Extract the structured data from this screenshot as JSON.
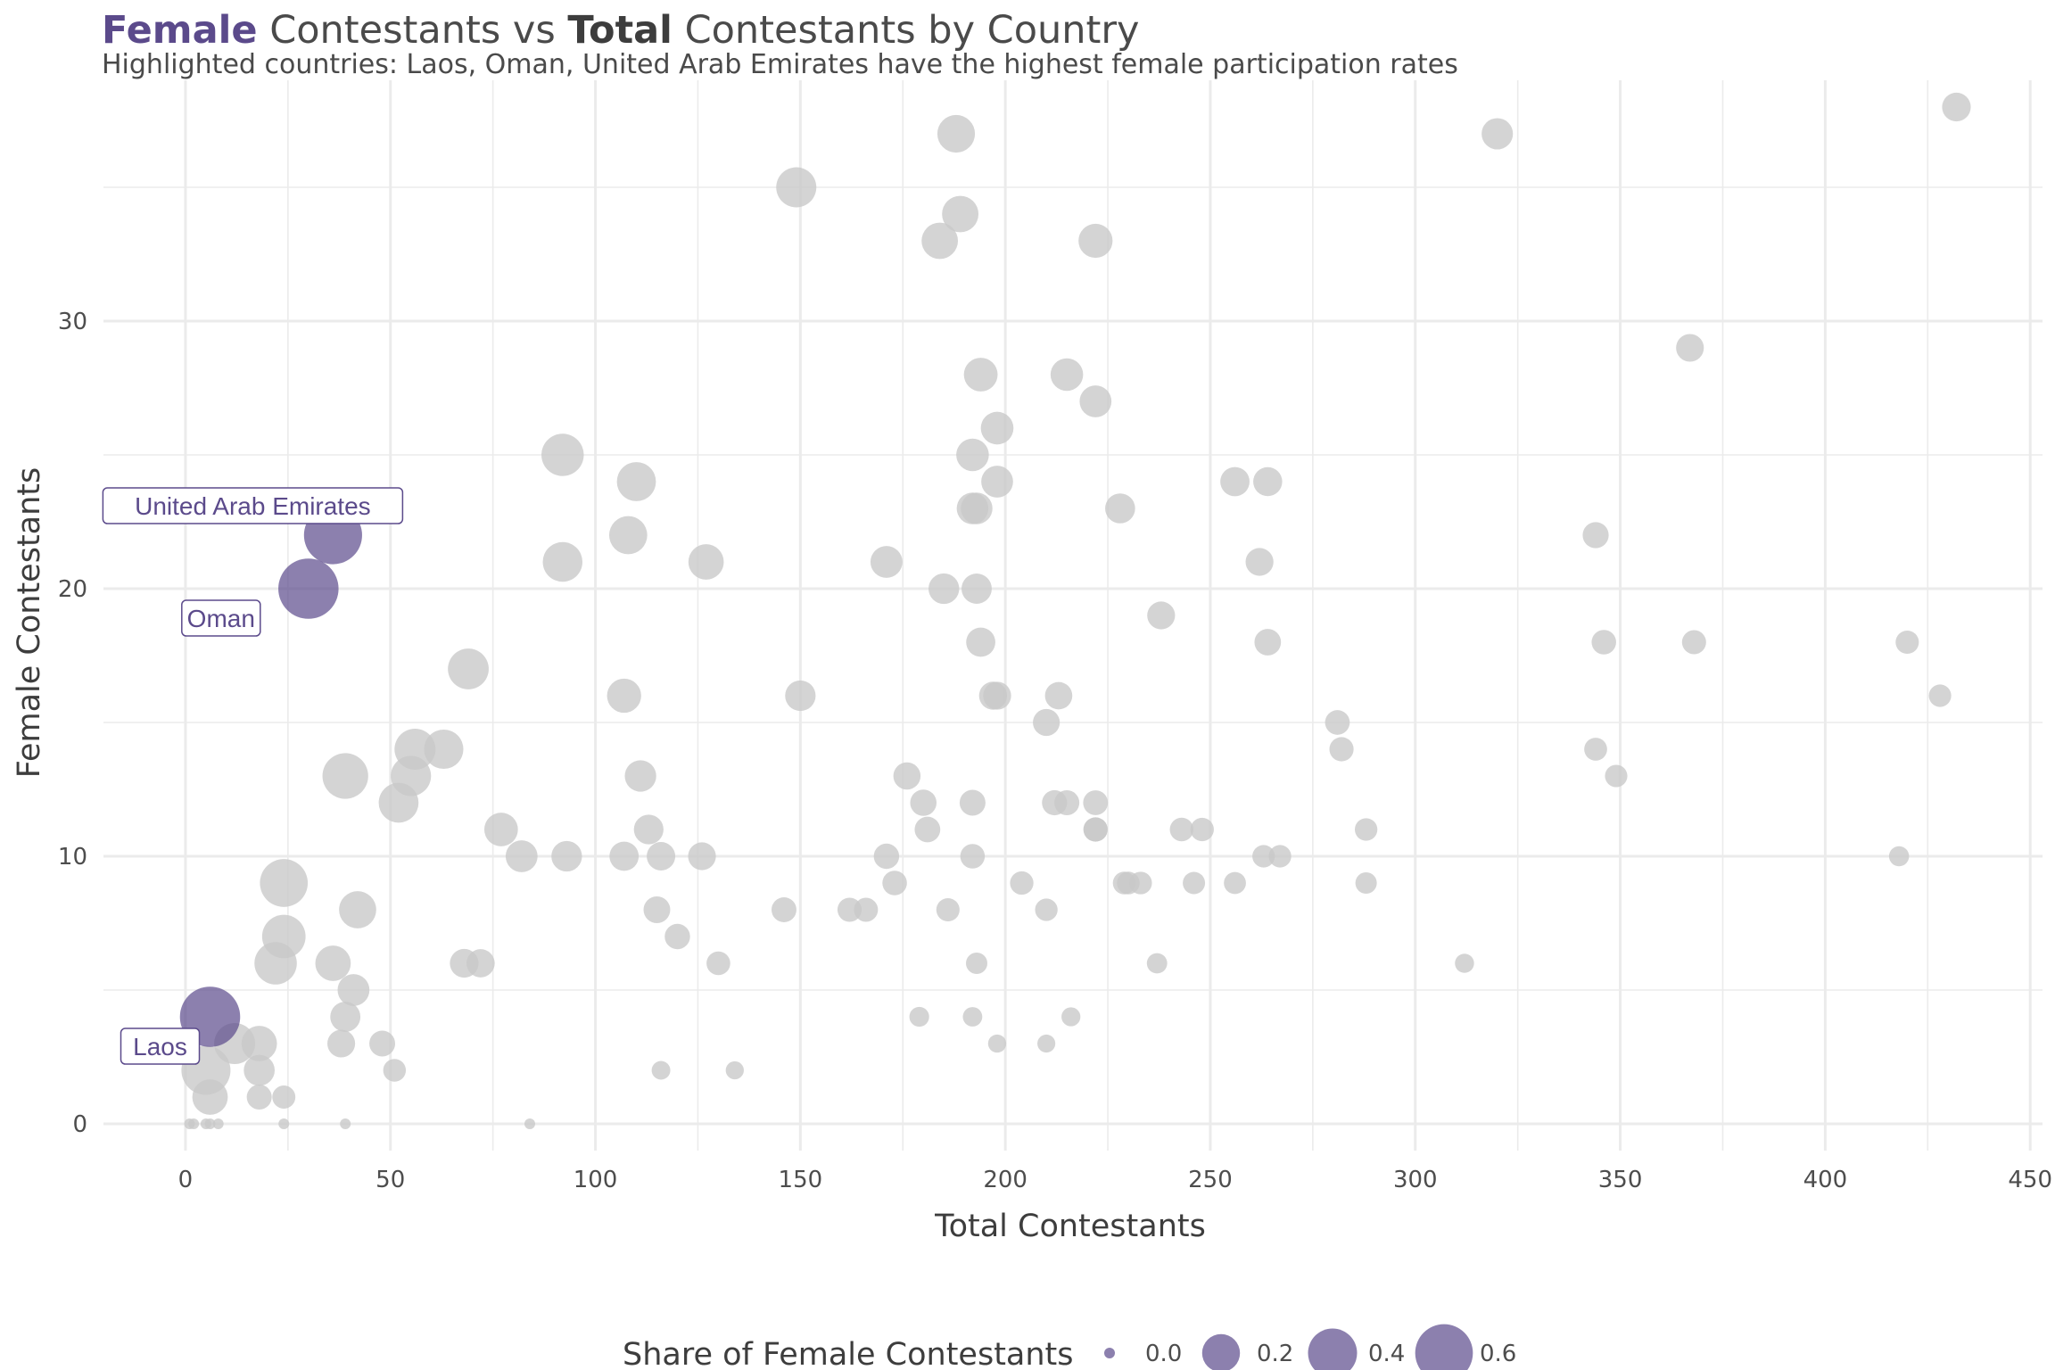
{
  "title_parts": {
    "a": "Female",
    "b": " Contestants vs ",
    "c": "Total",
    "d": " Contestants by Country"
  },
  "subtitle": "Highlighted countries: Laos, Oman, United Arab Emirates have the highest female participation rates",
  "colors": {
    "highlight": "#5b4a8b",
    "base": "#c8c8c8",
    "grid": "#ebebeb"
  },
  "chart_data": {
    "type": "scatter",
    "title": "Female Contestants vs Total Contestants by Country",
    "subtitle": "Highlighted countries: Laos, Oman, United Arab Emirates have the highest female participation rates",
    "xlabel": "Total Contestants",
    "ylabel": "Female Contestants",
    "xlim": [
      -20,
      453
    ],
    "ylim": [
      -1,
      39
    ],
    "xticks": [
      0,
      50,
      100,
      150,
      200,
      250,
      300,
      350,
      400,
      450
    ],
    "yticks": [
      0,
      10,
      20,
      30
    ],
    "grid": true,
    "size_encoding": "female / total",
    "legend": {
      "title": "Share of Female Contestants",
      "position": "bottom",
      "entries": [
        0.0,
        0.2,
        0.4,
        0.6
      ]
    },
    "highlighted": [
      {
        "name": "United Arab Emirates",
        "x": 36,
        "y": 22
      },
      {
        "name": "Oman",
        "x": 30,
        "y": 20
      },
      {
        "name": "Laos",
        "x": 6,
        "y": 4
      }
    ],
    "points": [
      [
        432,
        38
      ],
      [
        320,
        37
      ],
      [
        188,
        37
      ],
      [
        149,
        35
      ],
      [
        189,
        34
      ],
      [
        184,
        33
      ],
      [
        222,
        33
      ],
      [
        367,
        29
      ],
      [
        194,
        28
      ],
      [
        215,
        28
      ],
      [
        222,
        27
      ],
      [
        198,
        26
      ],
      [
        92,
        25
      ],
      [
        192,
        25
      ],
      [
        110,
        24
      ],
      [
        198,
        24
      ],
      [
        256,
        24
      ],
      [
        264,
        24
      ],
      [
        192,
        23
      ],
      [
        193,
        23
      ],
      [
        228,
        23
      ],
      [
        108,
        22
      ],
      [
        344,
        22
      ],
      [
        92,
        21
      ],
      [
        127,
        21
      ],
      [
        171,
        21
      ],
      [
        262,
        21
      ],
      [
        185,
        20
      ],
      [
        193,
        20
      ],
      [
        238,
        19
      ],
      [
        194,
        18
      ],
      [
        264,
        18
      ],
      [
        346,
        18
      ],
      [
        368,
        18
      ],
      [
        420,
        18
      ],
      [
        69,
        17
      ],
      [
        107,
        16
      ],
      [
        150,
        16
      ],
      [
        197,
        16
      ],
      [
        198,
        16
      ],
      [
        213,
        16
      ],
      [
        428,
        16
      ],
      [
        210,
        15
      ],
      [
        281,
        15
      ],
      [
        56,
        14
      ],
      [
        63,
        14
      ],
      [
        282,
        14
      ],
      [
        344,
        14
      ],
      [
        39,
        13
      ],
      [
        55,
        13
      ],
      [
        111,
        13
      ],
      [
        176,
        13
      ],
      [
        349,
        13
      ],
      [
        52,
        12
      ],
      [
        180,
        12
      ],
      [
        192,
        12
      ],
      [
        212,
        12
      ],
      [
        215,
        12
      ],
      [
        222,
        12
      ],
      [
        77,
        11
      ],
      [
        113,
        11
      ],
      [
        181,
        11
      ],
      [
        222,
        11
      ],
      [
        222,
        11
      ],
      [
        243,
        11
      ],
      [
        248,
        11
      ],
      [
        288,
        11
      ],
      [
        82,
        10
      ],
      [
        93,
        10
      ],
      [
        107,
        10
      ],
      [
        116,
        10
      ],
      [
        126,
        10
      ],
      [
        171,
        10
      ],
      [
        192,
        10
      ],
      [
        263,
        10
      ],
      [
        267,
        10
      ],
      [
        418,
        10
      ],
      [
        24,
        9
      ],
      [
        173,
        9
      ],
      [
        204,
        9
      ],
      [
        229,
        9
      ],
      [
        230,
        9
      ],
      [
        233,
        9
      ],
      [
        246,
        9
      ],
      [
        256,
        9
      ],
      [
        288,
        9
      ],
      [
        42,
        8
      ],
      [
        115,
        8
      ],
      [
        146,
        8
      ],
      [
        162,
        8
      ],
      [
        166,
        8
      ],
      [
        186,
        8
      ],
      [
        210,
        8
      ],
      [
        24,
        7
      ],
      [
        120,
        7
      ],
      [
        22,
        6
      ],
      [
        36,
        6
      ],
      [
        68,
        6
      ],
      [
        72,
        6
      ],
      [
        130,
        6
      ],
      [
        193,
        6
      ],
      [
        237,
        6
      ],
      [
        312,
        6
      ],
      [
        41,
        5
      ],
      [
        39,
        4
      ],
      [
        179,
        4
      ],
      [
        192,
        4
      ],
      [
        216,
        4
      ],
      [
        12,
        3
      ],
      [
        18,
        3
      ],
      [
        38,
        3
      ],
      [
        48,
        3
      ],
      [
        198,
        3
      ],
      [
        210,
        3
      ],
      [
        5,
        2
      ],
      [
        18,
        2
      ],
      [
        51,
        2
      ],
      [
        116,
        2
      ],
      [
        134,
        2
      ],
      [
        6,
        1
      ],
      [
        18,
        1
      ],
      [
        24,
        1
      ],
      [
        1,
        0
      ],
      [
        2,
        0
      ],
      [
        5,
        0
      ],
      [
        6,
        0
      ],
      [
        8,
        0
      ],
      [
        24,
        0
      ],
      [
        39,
        0
      ],
      [
        84,
        0
      ]
    ]
  }
}
